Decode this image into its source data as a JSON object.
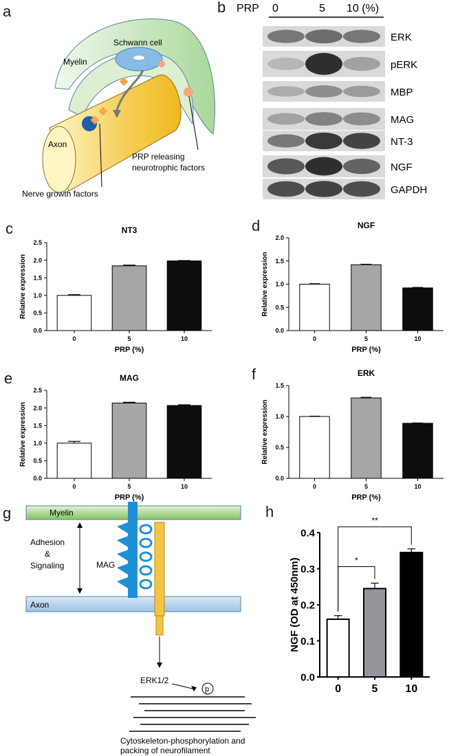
{
  "panel_letters": {
    "a": "a",
    "b": "b",
    "c": "c",
    "d": "d",
    "e": "e",
    "f": "f",
    "g": "g",
    "h": "h"
  },
  "panel_a": {
    "schwann": "Schwann cell",
    "myelin": "Myelin",
    "axon": "Axon",
    "prp_line1": "PRP releasing",
    "prp_line2": "neurotrophic factors",
    "ngf": "Nerve growth factors",
    "colors": {
      "myelin": "#cfe6c6",
      "axon": "#f3c64a",
      "schwann": "#7fb4e0",
      "factor": "#f3a64a",
      "receptor": "#1f5fa8"
    }
  },
  "panel_b": {
    "prp_label": "PRP",
    "lanes": [
      "0",
      "5",
      "10 (%)"
    ],
    "rows": [
      "ERK",
      "pERK",
      "MBP",
      "MAG",
      "NT-3",
      "NGF",
      "GAPDH"
    ]
  },
  "panel_g": {
    "myelin": "Myelin",
    "axon": "Axon",
    "adhesion_1": "Adhesion",
    "adhesion_2": "&",
    "adhesion_3": "Signaling",
    "mag": "MAG",
    "erk": "ERK1/2",
    "p": "p",
    "caption_1": "Cytoskeleton-phosphorylation and",
    "caption_2": "packing of neurofilament",
    "colors": {
      "myelin": "#a9d18e",
      "axon": "#bdd7ee",
      "mag": "#1f8fd6",
      "rod": "#f4c542"
    }
  },
  "chart_data": [
    {
      "id": "c",
      "type": "bar",
      "title": "NT3",
      "categories": [
        "0",
        "5",
        "10"
      ],
      "values": [
        1.0,
        1.84,
        1.98
      ],
      "errors": [
        0.02,
        0.02,
        0.01
      ],
      "xlabel": "PRP (%)",
      "ylabel": "Relative expression",
      "ylim": [
        0,
        2.5
      ],
      "yticks": [
        "0.0",
        "0.5",
        "1.0",
        "1.5",
        "2.0",
        "2.5"
      ],
      "colors": [
        "#ffffff",
        "#a6a6a6",
        "#0d0d0d"
      ]
    },
    {
      "id": "d",
      "type": "bar",
      "title": "NGF",
      "categories": [
        "0",
        "5",
        "10"
      ],
      "values": [
        1.0,
        1.42,
        0.92
      ],
      "errors": [
        0.01,
        0.01,
        0.01
      ],
      "xlabel": "PRP (%)",
      "ylabel": "Relative expression",
      "ylim": [
        0,
        2.0
      ],
      "yticks": [
        "0.0",
        "0.5",
        "1.0",
        "1.5",
        "2.0"
      ],
      "colors": [
        "#ffffff",
        "#a6a6a6",
        "#0d0d0d"
      ]
    },
    {
      "id": "e",
      "type": "bar",
      "title": "MAG",
      "categories": [
        "0",
        "5",
        "10"
      ],
      "values": [
        1.0,
        2.14,
        2.07
      ],
      "errors": [
        0.05,
        0.02,
        0.02
      ],
      "xlabel": "PRP (%)",
      "ylabel": "Relative expression",
      "ylim": [
        0,
        2.5
      ],
      "yticks": [
        "0.0",
        "0.5",
        "1.0",
        "1.5",
        "2.0",
        "2.5"
      ],
      "colors": [
        "#ffffff",
        "#a6a6a6",
        "#0d0d0d"
      ]
    },
    {
      "id": "f",
      "type": "bar",
      "title": "ERK",
      "categories": [
        "0",
        "5",
        "10"
      ],
      "values": [
        1.0,
        1.3,
        0.89
      ],
      "errors": [
        0.005,
        0.01,
        0.005
      ],
      "xlabel": "PRP (%)",
      "ylabel": "Relative expression",
      "ylim": [
        0,
        1.5
      ],
      "yticks": [
        "0.0",
        "0.5",
        "1.0",
        "1.5"
      ],
      "colors": [
        "#ffffff",
        "#a6a6a6",
        "#0d0d0d"
      ]
    },
    {
      "id": "h",
      "type": "bar",
      "title": "",
      "categories": [
        "0",
        "5",
        "10"
      ],
      "values": [
        0.16,
        0.245,
        0.345
      ],
      "errors": [
        0.01,
        0.015,
        0.01
      ],
      "xlabel": "",
      "ylabel": "NGF (OD at 450nm)",
      "ylim": [
        0,
        0.4
      ],
      "yticks": [
        "0.0",
        "0.1",
        "0.2",
        "0.3",
        "0.4"
      ],
      "colors": [
        "#ffffff",
        "#97959c",
        "#000000"
      ],
      "significance": [
        {
          "from": 0,
          "to": 1,
          "label": "*"
        },
        {
          "from": 0,
          "to": 2,
          "label": "**"
        }
      ]
    }
  ]
}
